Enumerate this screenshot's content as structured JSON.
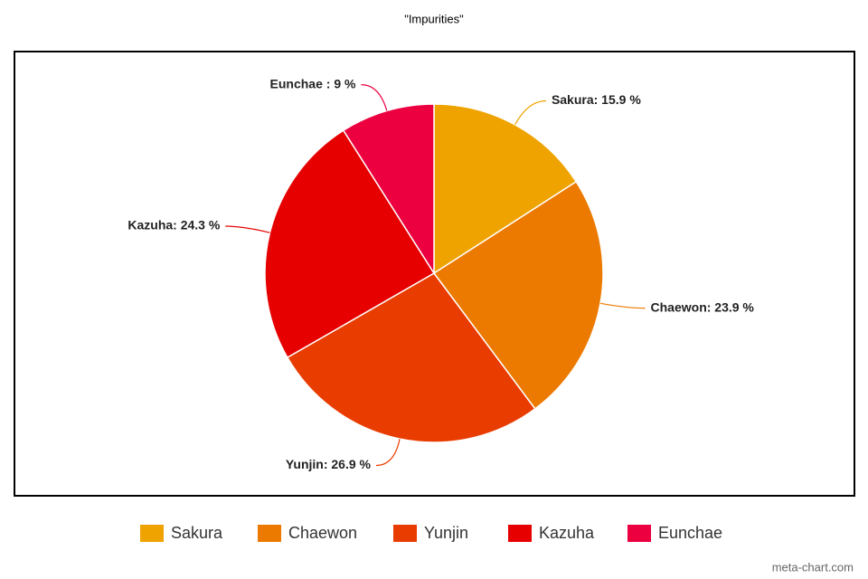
{
  "chart_data": {
    "type": "pie",
    "title": "\"Impurities\"",
    "categories": [
      "Sakura",
      "Chaewon",
      "Yunjin",
      "Kazuha",
      "Eunchae"
    ],
    "values": [
      15.9,
      23.9,
      26.9,
      24.3,
      9
    ],
    "value_labels": [
      "Sakura: 15.9 %",
      "Chaewon: 23.9 %",
      "Yunjin: 26.9 %",
      "Kazuha: 24.3 %",
      "Eunchae : 9 %"
    ],
    "colors": [
      "#efa300",
      "#ec7a00",
      "#e93c00",
      "#e60000",
      "#ec0040"
    ],
    "legend": "bottom",
    "watermark": "meta-chart.com"
  }
}
